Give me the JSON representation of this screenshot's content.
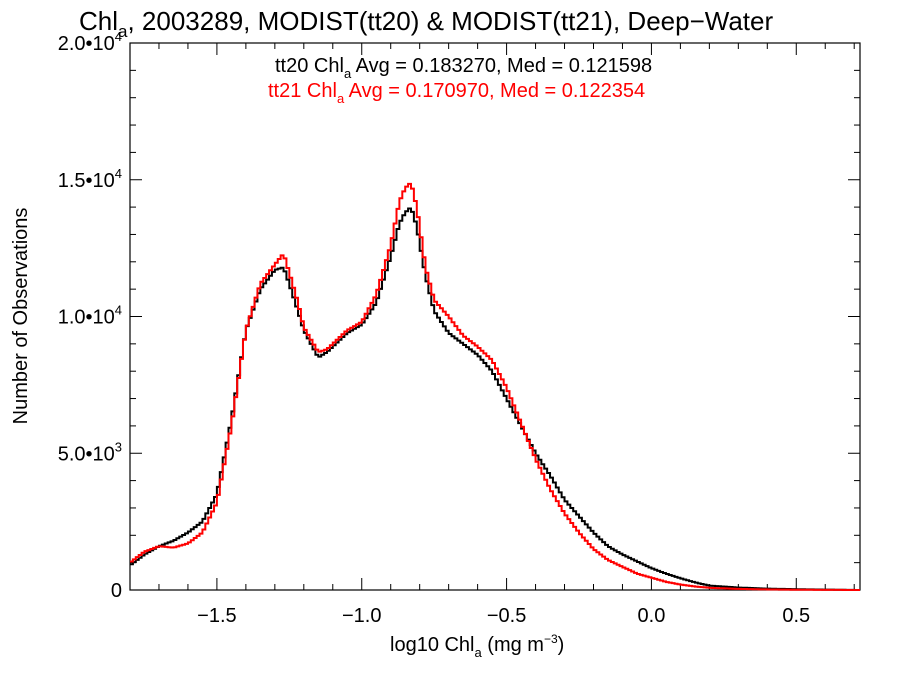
{
  "chart_data": {
    "type": "line",
    "title": {
      "prefix": "Chl",
      "sub": "a",
      "rest": ", 2003289, MODIST(tt20) & MODIST(tt21), Deep−Water"
    },
    "xlabel": {
      "prefix": "log10 Chl",
      "sub": "a",
      "rest": " (mg m",
      "sup": "−3",
      "end": ")"
    },
    "ylabel": "Number of Observations",
    "xlim": [
      -1.8,
      0.72
    ],
    "ylim": [
      0,
      20000
    ],
    "xticks": [
      {
        "value": -1.5,
        "label": "−1.5"
      },
      {
        "value": -1.0,
        "label": "−1.0"
      },
      {
        "value": -0.5,
        "label": "−0.5"
      },
      {
        "value": 0.0,
        "label": "0.0"
      },
      {
        "value": 0.5,
        "label": "0.5"
      }
    ],
    "yticks": [
      {
        "value": 0,
        "mant": "0",
        "exp": ""
      },
      {
        "value": 5000,
        "mant": "5.0•10",
        "exp": "3"
      },
      {
        "value": 10000,
        "mant": "1.0•10",
        "exp": "4"
      },
      {
        "value": 15000,
        "mant": "1.5•10",
        "exp": "4"
      },
      {
        "value": 20000,
        "mant": "2.0•10",
        "exp": "4"
      }
    ],
    "annotations": [
      {
        "prefix": "tt20 Chl",
        "sub": "a",
        "rest": " Avg = 0.183270, Med = 0.121598",
        "color": "#000000"
      },
      {
        "prefix": "tt21 Chl",
        "sub": "a",
        "rest": " Avg = 0.170970, Med = 0.122354",
        "color": "#ff0000"
      }
    ],
    "series": [
      {
        "color": "#000000",
        "x": [
          -1.8,
          -1.75,
          -1.7,
          -1.65,
          -1.6,
          -1.55,
          -1.5,
          -1.45,
          -1.4,
          -1.35,
          -1.3,
          -1.27,
          -1.25,
          -1.22,
          -1.2,
          -1.15,
          -1.12,
          -1.1,
          -1.05,
          -1.0,
          -0.95,
          -0.9,
          -0.87,
          -0.85,
          -0.83,
          -0.81,
          -0.78,
          -0.75,
          -0.7,
          -0.65,
          -0.6,
          -0.55,
          -0.5,
          -0.45,
          -0.4,
          -0.35,
          -0.3,
          -0.25,
          -0.2,
          -0.15,
          -0.1,
          -0.05,
          0.0,
          0.05,
          0.1,
          0.15,
          0.2,
          0.3,
          0.4,
          0.5,
          0.6,
          0.72
        ],
        "y": [
          900,
          1300,
          1600,
          1800,
          2100,
          2500,
          3500,
          6200,
          9500,
          11000,
          11700,
          11800,
          11200,
          10200,
          9500,
          8500,
          8700,
          8900,
          9400,
          9700,
          10500,
          12200,
          13400,
          13800,
          14000,
          13300,
          11500,
          10200,
          9400,
          9000,
          8600,
          8000,
          7000,
          6000,
          5000,
          4200,
          3300,
          2700,
          2100,
          1600,
          1300,
          1050,
          800,
          600,
          430,
          280,
          160,
          90,
          50,
          30,
          15,
          0
        ]
      },
      {
        "color": "#ff0000",
        "x": [
          -1.8,
          -1.75,
          -1.7,
          -1.65,
          -1.6,
          -1.55,
          -1.5,
          -1.45,
          -1.4,
          -1.35,
          -1.3,
          -1.27,
          -1.25,
          -1.22,
          -1.2,
          -1.15,
          -1.12,
          -1.1,
          -1.05,
          -1.0,
          -0.95,
          -0.9,
          -0.87,
          -0.85,
          -0.83,
          -0.81,
          -0.78,
          -0.75,
          -0.7,
          -0.65,
          -0.6,
          -0.55,
          -0.5,
          -0.45,
          -0.4,
          -0.35,
          -0.3,
          -0.25,
          -0.2,
          -0.15,
          -0.1,
          -0.05,
          0.0,
          0.05,
          0.1,
          0.15,
          0.2,
          0.3,
          0.4,
          0.5,
          0.6,
          0.72
        ],
        "y": [
          1000,
          1400,
          1600,
          1550,
          1700,
          2100,
          3200,
          6000,
          9500,
          11200,
          11900,
          12300,
          11600,
          10500,
          9600,
          8700,
          8800,
          9000,
          9500,
          9800,
          10800,
          12600,
          14200,
          14700,
          14900,
          14000,
          11800,
          10600,
          10000,
          9300,
          8900,
          8400,
          7400,
          6100,
          4800,
          3700,
          2800,
          2100,
          1500,
          1100,
          850,
          600,
          450,
          300,
          200,
          130,
          80,
          40,
          20,
          10,
          5,
          0
        ]
      }
    ]
  }
}
